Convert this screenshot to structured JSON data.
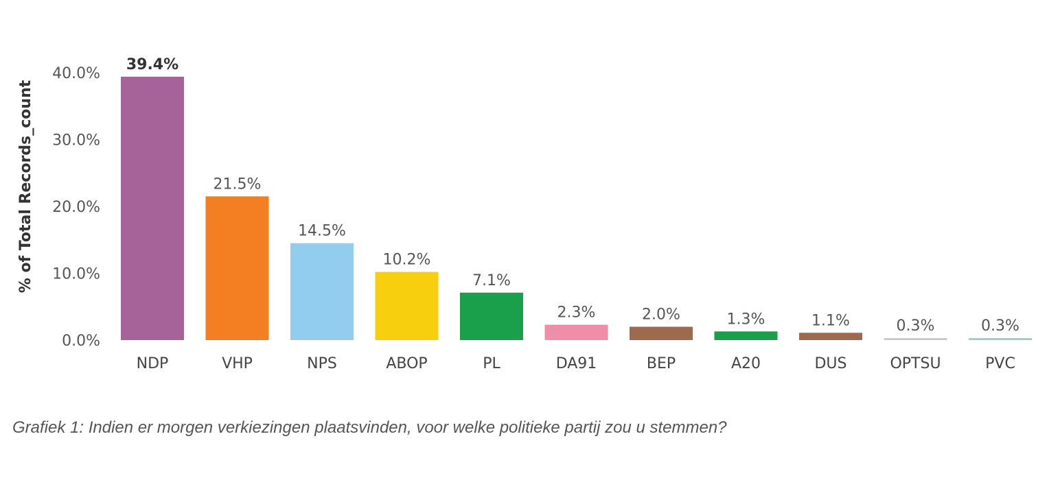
{
  "chart_data": {
    "type": "bar",
    "categories": [
      "NDP",
      "VHP",
      "NPS",
      "ABOP",
      "PL",
      "DA91",
      "BEP",
      "A20",
      "DUS",
      "OPTSU",
      "PVC"
    ],
    "values": [
      39.4,
      21.5,
      14.5,
      10.2,
      7.1,
      2.3,
      2.0,
      1.3,
      1.1,
      0.3,
      0.3
    ],
    "data_labels": [
      "39.4%",
      "21.5%",
      "14.5%",
      "10.2%",
      "7.1%",
      "2.3%",
      "2.0%",
      "1.3%",
      "1.1%",
      "0.3%",
      "0.3%"
    ],
    "colors": [
      "#a5639a",
      "#f37f22",
      "#92cdf0",
      "#f7cf0f",
      "#1aa04a",
      "#f08ea9",
      "#9d6a4e",
      "#1aa04a",
      "#9d6a4e",
      "#c9c9c9",
      "#8fd2d3"
    ],
    "ylabel": "% of Total Records_count",
    "yticks": [
      0,
      10,
      20,
      30,
      40
    ],
    "ytick_labels": [
      "0.0%",
      "10.0%",
      "20.0%",
      "30.0%",
      "40.0%"
    ],
    "ylim": [
      0,
      40
    ],
    "grid": false,
    "legend": "none"
  },
  "caption": "Grafiek 1: Indien er morgen verkiezingen plaatsvinden, voor welke politieke partij zou u stemmen?"
}
